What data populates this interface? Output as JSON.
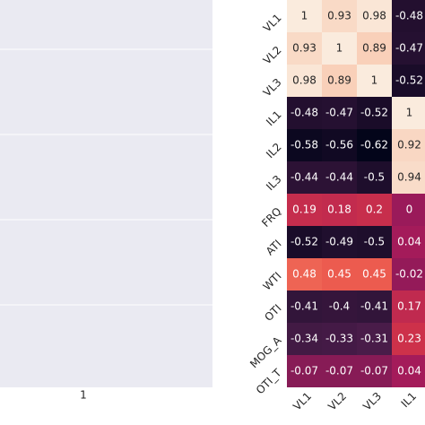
{
  "chart_data": [
    {
      "type": "empty",
      "xticks": [
        1
      ],
      "background": "#eaeaf2"
    },
    {
      "type": "heatmap",
      "rows": [
        "VL1",
        "VL2",
        "VL3",
        "IL1",
        "IL2",
        "IL3",
        "FRQ",
        "ATI",
        "WTI",
        "OTI",
        "MOG_A",
        "OTI_T"
      ],
      "columns": [
        "VL1",
        "VL2",
        "VL3",
        "IL1"
      ],
      "values": [
        [
          1,
          0.93,
          0.98,
          -0.48
        ],
        [
          0.93,
          1,
          0.89,
          -0.47
        ],
        [
          0.98,
          0.89,
          1,
          -0.52
        ],
        [
          -0.48,
          -0.47,
          -0.52,
          1
        ],
        [
          -0.58,
          -0.56,
          -0.62,
          0.92
        ],
        [
          -0.44,
          -0.44,
          -0.5,
          0.94
        ],
        [
          0.19,
          0.18,
          0.2,
          0
        ],
        [
          -0.52,
          -0.49,
          -0.5,
          0.04
        ],
        [
          0.48,
          0.45,
          0.45,
          -0.02
        ],
        [
          -0.41,
          -0.4,
          -0.41,
          0.17
        ],
        [
          -0.34,
          -0.33,
          -0.31,
          0.23
        ],
        [
          -0.07,
          -0.07,
          -0.07,
          0.04
        ]
      ],
      "colormap": [
        "#03051a",
        "#4c1d4b",
        "#a11a5b",
        "#e83f3f",
        "#f69c73",
        "#faebdd"
      ]
    }
  ]
}
